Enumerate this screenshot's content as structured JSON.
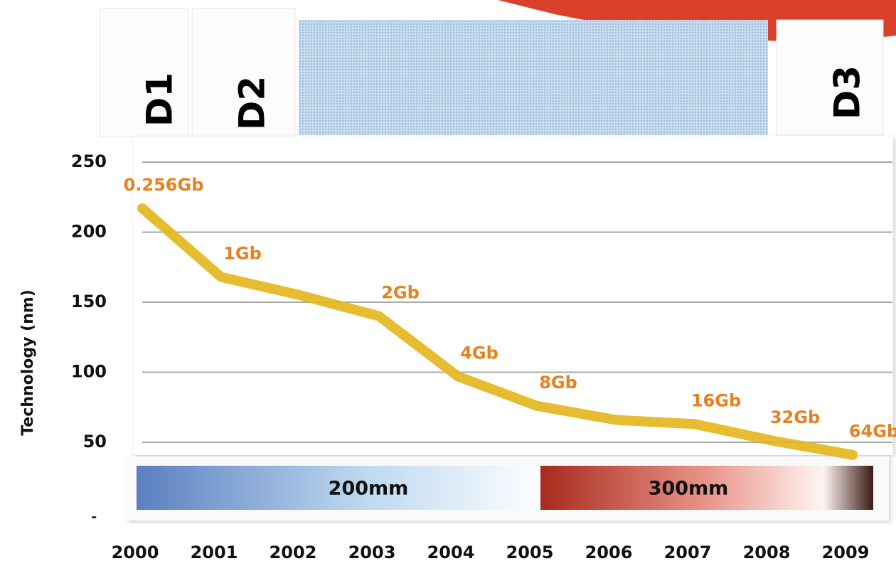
{
  "chart_data": {
    "type": "line",
    "y_axis_label": "Technology (nm)",
    "categories": [
      "2000",
      "2001",
      "2002",
      "2003",
      "2004",
      "2005",
      "2006",
      "2007",
      "2008",
      "2009"
    ],
    "series": [
      {
        "name": "Technology",
        "color": "#e3b61a",
        "values": [
          217,
          168,
          155,
          140,
          97,
          76,
          66,
          63,
          51,
          41
        ]
      }
    ],
    "ylim": [
      0,
      250
    ],
    "yticks": [
      50,
      100,
      150,
      200,
      250
    ],
    "grid": true,
    "annotations": [
      {
        "text": "0.256Gb",
        "category": "2000"
      },
      {
        "text": "1Gb",
        "category": "2001"
      },
      {
        "text": "2Gb",
        "category": "2003"
      },
      {
        "text": "4Gb",
        "category": "2004"
      },
      {
        "text": "8Gb",
        "category": "2005"
      },
      {
        "text": "16Gb",
        "category": "2007"
      },
      {
        "text": "32Gb",
        "category": "2008"
      },
      {
        "text": "64Gb",
        "category": "2009"
      }
    ],
    "phases": [
      "D1",
      "D2",
      "D3"
    ],
    "wafer_sizes": [
      "200mm",
      "300mm"
    ]
  }
}
